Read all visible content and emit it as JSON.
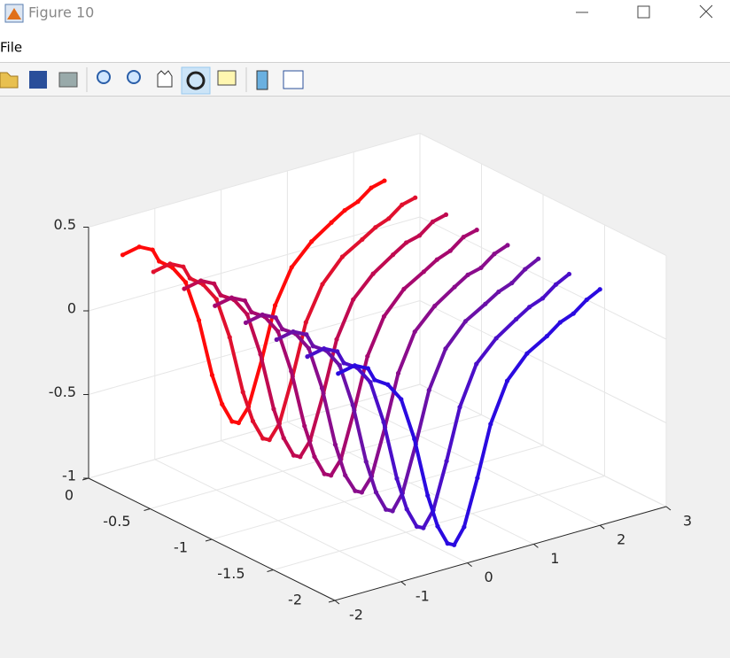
{
  "window": {
    "title": "Figure 10",
    "menu": [
      "File"
    ]
  },
  "chart_data": {
    "type": "scatter3",
    "xlim": [
      -2,
      3
    ],
    "xticks": [
      -2,
      -1,
      0,
      1,
      2,
      3
    ],
    "ylim": [
      -2,
      0
    ],
    "yticks": [
      -2,
      -1.5,
      -1,
      -0.5,
      0
    ],
    "zlim": [
      -1,
      0.5
    ],
    "zticks": [
      -1,
      -0.5,
      0,
      0.5
    ],
    "grid": true,
    "series": [
      {
        "color": "#ff0a0a",
        "y": -0.25,
        "x": [
          -1.95,
          -1.7,
          -1.5,
          -1.4,
          -1.2,
          -1.0,
          -0.8,
          -0.6,
          -0.45,
          -0.3,
          -0.2,
          -0.05,
          0.15,
          0.35,
          0.6,
          0.9,
          1.2,
          1.4,
          1.6,
          1.8,
          2.0
        ],
        "z": [
          0.42,
          0.44,
          0.4,
          0.32,
          0.26,
          0.15,
          -0.1,
          -0.45,
          -0.64,
          -0.76,
          -0.78,
          -0.7,
          -0.44,
          -0.14,
          0.06,
          0.18,
          0.26,
          0.31,
          0.34,
          0.4,
          0.42
        ]
      },
      {
        "color": "#e0102e",
        "y": -0.5,
        "x": [
          -1.95,
          -1.7,
          -1.5,
          -1.4,
          -1.2,
          -1.0,
          -0.8,
          -0.6,
          -0.45,
          -0.3,
          -0.2,
          -0.05,
          0.15,
          0.35,
          0.6,
          0.9,
          1.2,
          1.4,
          1.6,
          1.8,
          2.0
        ],
        "z": [
          0.41,
          0.43,
          0.39,
          0.31,
          0.25,
          0.14,
          -0.11,
          -0.46,
          -0.65,
          -0.77,
          -0.79,
          -0.71,
          -0.45,
          -0.15,
          0.05,
          0.18,
          0.25,
          0.3,
          0.33,
          0.39,
          0.41
        ]
      },
      {
        "color": "#c00a50",
        "y": -0.75,
        "x": [
          -1.95,
          -1.7,
          -1.5,
          -1.4,
          -1.2,
          -1.0,
          -0.8,
          -0.6,
          -0.45,
          -0.3,
          -0.2,
          -0.05,
          0.15,
          0.35,
          0.6,
          0.9,
          1.2,
          1.4,
          1.6,
          1.8,
          2.0
        ],
        "z": [
          0.4,
          0.42,
          0.38,
          0.3,
          0.25,
          0.14,
          -0.12,
          -0.47,
          -0.66,
          -0.78,
          -0.8,
          -0.72,
          -0.46,
          -0.16,
          0.05,
          0.17,
          0.25,
          0.3,
          0.32,
          0.38,
          0.4
        ]
      },
      {
        "color": "#a6086e",
        "y": -1.0,
        "x": [
          -1.95,
          -1.7,
          -1.5,
          -1.4,
          -1.2,
          -1.0,
          -0.8,
          -0.6,
          -0.45,
          -0.3,
          -0.2,
          -0.05,
          0.15,
          0.35,
          0.6,
          0.9,
          1.2,
          1.4,
          1.6,
          1.8,
          2.0
        ],
        "z": [
          0.39,
          0.41,
          0.37,
          0.29,
          0.24,
          0.13,
          -0.13,
          -0.48,
          -0.68,
          -0.8,
          -0.82,
          -0.74,
          -0.47,
          -0.17,
          0.04,
          0.17,
          0.24,
          0.29,
          0.32,
          0.38,
          0.4
        ]
      },
      {
        "color": "#8a0c8c",
        "y": -1.25,
        "x": [
          -1.95,
          -1.7,
          -1.5,
          -1.4,
          -1.2,
          -1.0,
          -0.8,
          -0.6,
          -0.45,
          -0.3,
          -0.2,
          -0.05,
          0.15,
          0.35,
          0.6,
          0.9,
          1.2,
          1.4,
          1.6,
          1.8,
          2.0
        ],
        "z": [
          0.38,
          0.4,
          0.36,
          0.28,
          0.23,
          0.12,
          -0.14,
          -0.5,
          -0.7,
          -0.81,
          -0.83,
          -0.75,
          -0.48,
          -0.18,
          0.04,
          0.16,
          0.24,
          0.29,
          0.31,
          0.37,
          0.4
        ]
      },
      {
        "color": "#6a10a8",
        "y": -1.5,
        "x": [
          -1.95,
          -1.7,
          -1.5,
          -1.4,
          -1.2,
          -1.0,
          -0.8,
          -0.6,
          -0.45,
          -0.3,
          -0.2,
          -0.05,
          0.15,
          0.35,
          0.6,
          0.9,
          1.2,
          1.4,
          1.6,
          1.8,
          2.0
        ],
        "z": [
          0.37,
          0.39,
          0.35,
          0.27,
          0.22,
          0.11,
          -0.15,
          -0.51,
          -0.71,
          -0.83,
          -0.85,
          -0.76,
          -0.49,
          -0.19,
          0.03,
          0.16,
          0.23,
          0.28,
          0.31,
          0.37,
          0.41
        ]
      },
      {
        "color": "#4a0ec8",
        "y": -1.75,
        "x": [
          -1.95,
          -1.7,
          -1.5,
          -1.4,
          -1.2,
          -1.0,
          -0.8,
          -0.6,
          -0.45,
          -0.3,
          -0.2,
          -0.05,
          0.15,
          0.35,
          0.6,
          0.9,
          1.2,
          1.4,
          1.6,
          1.8,
          2.0
        ],
        "z": [
          0.36,
          0.38,
          0.34,
          0.26,
          0.21,
          0.1,
          -0.16,
          -0.52,
          -0.72,
          -0.84,
          -0.86,
          -0.77,
          -0.5,
          -0.2,
          0.03,
          0.15,
          0.23,
          0.28,
          0.31,
          0.37,
          0.41
        ]
      },
      {
        "color": "#2a0ae0",
        "y": -2.0,
        "x": [
          -1.95,
          -1.7,
          -1.5,
          -1.4,
          -1.2,
          -1.0,
          -0.8,
          -0.6,
          -0.45,
          -0.3,
          -0.2,
          -0.05,
          0.15,
          0.35,
          0.6,
          0.9,
          1.2,
          1.4,
          1.6,
          1.8,
          2.0
        ],
        "z": [
          0.35,
          0.37,
          0.33,
          0.25,
          0.2,
          0.09,
          -0.17,
          -0.53,
          -0.73,
          -0.85,
          -0.87,
          -0.78,
          -0.51,
          -0.21,
          0.02,
          0.15,
          0.22,
          0.28,
          0.31,
          0.37,
          0.41
        ]
      }
    ]
  }
}
